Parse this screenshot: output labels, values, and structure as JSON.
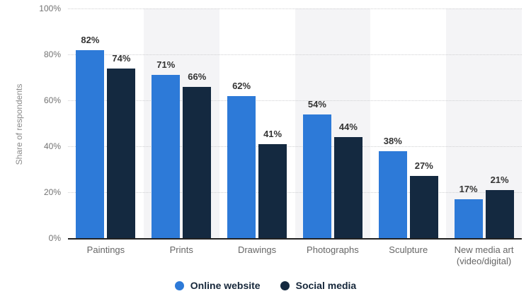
{
  "chart_data": {
    "type": "bar",
    "title": "",
    "ylabel": "Share of respondents",
    "xlabel": "",
    "categories": [
      "Paintings",
      "Prints",
      "Drawings",
      "Photographs",
      "Sculpture",
      "New media art\n(video/digital)"
    ],
    "series": [
      {
        "name": "Online website",
        "color": "#2d7ad8",
        "values": [
          82,
          71,
          62,
          54,
          38,
          17
        ]
      },
      {
        "name": "Social media",
        "color": "#142940",
        "values": [
          74,
          66,
          41,
          44,
          27,
          21
        ]
      }
    ],
    "value_suffix": "%",
    "ylim": [
      0,
      100
    ],
    "yticks": [
      0,
      20,
      40,
      60,
      80,
      100
    ],
    "ytick_suffix": "%",
    "grid": "dotted-horizontal",
    "legend_position": "bottom-center",
    "band_colors": [
      "#ffffff",
      "#f4f4f6"
    ],
    "axis_line_color": "#222222",
    "gridline_color": "#cfd0d2",
    "value_label_color": "#333333",
    "tick_label_color": "#737373",
    "category_label_color": "#666666"
  }
}
